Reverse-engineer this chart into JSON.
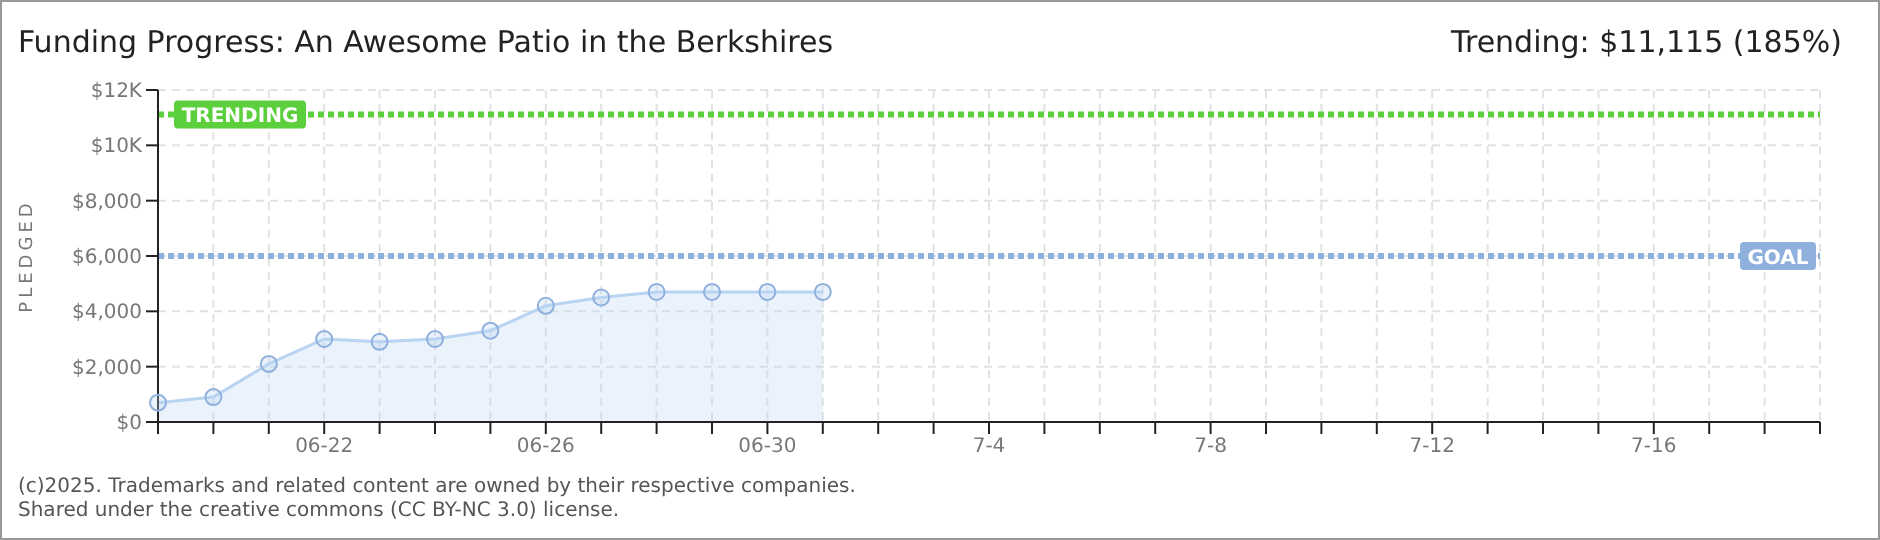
{
  "chart_data": {
    "type": "area",
    "title": "Funding Progress: An Awesome Patio in the Berkshires",
    "subtitle": "Trending: $11,115 (185%)",
    "ylabel": "PLEDGED",
    "categories": [
      null,
      null,
      null,
      "06-22",
      null,
      null,
      null,
      "06-26",
      null,
      null,
      null,
      "06-30",
      null,
      null,
      null,
      "7-4",
      null,
      null,
      null,
      "7-8",
      null,
      null,
      null,
      "7-12",
      null,
      null,
      null,
      "7-16",
      null,
      null,
      null
    ],
    "series": [
      {
        "color": "#b8d4f2",
        "values": [
          700,
          900,
          2100,
          3000,
          2900,
          3000,
          3300,
          4200,
          4500,
          4700,
          4700,
          4700,
          4700,
          null,
          null,
          null,
          null,
          null,
          null,
          null,
          null,
          null,
          null,
          null,
          null,
          null,
          null,
          null,
          null,
          null,
          null
        ]
      }
    ],
    "ylim": [
      0,
      12000
    ],
    "yticks": [
      {
        "value": 0,
        "label": "$0"
      },
      {
        "value": 2000,
        "label": "$2,000"
      },
      {
        "value": 4000,
        "label": "$4,000"
      },
      {
        "value": 6000,
        "label": "$6,000"
      },
      {
        "value": 8000,
        "label": "$8,000"
      },
      {
        "value": 10000,
        "label": "$10K"
      },
      {
        "value": 12000,
        "label": "$12K"
      }
    ],
    "ref_lines": [
      {
        "axis": "y",
        "value": 11115,
        "label": "TRENDING",
        "color": "#5ccf3c",
        "line_style": "dotted"
      },
      {
        "axis": "y",
        "value": 6000,
        "label": "GOAL",
        "color": "#8fb0dc",
        "line_style": "dotted"
      }
    ],
    "grid": true,
    "marker": "circle",
    "line_style": "solid",
    "annotations": [
      "(c)2025. Trademarks and related content are owned by their respective companies.",
      "Shared under the creative commons (CC BY-NC 3.0) license."
    ]
  }
}
